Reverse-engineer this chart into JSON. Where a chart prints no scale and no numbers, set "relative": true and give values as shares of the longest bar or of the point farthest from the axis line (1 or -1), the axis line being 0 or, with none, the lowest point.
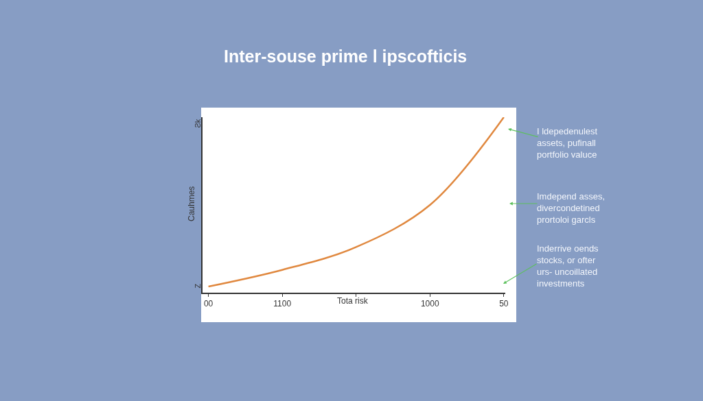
{
  "chart_data": {
    "type": "line",
    "title": "Inter-souse prime l ipscofticis",
    "xlabel": "Tota risk",
    "ylabel": "Cauhmes",
    "relative": true,
    "categories": [
      "00",
      "1100",
      null,
      "1000",
      "50"
    ],
    "series": [
      {
        "color": "#e0883f",
        "values": [
          0.035,
          0.13,
          0.26,
          0.5,
          1.0
        ]
      }
    ],
    "annotations": [
      "Ƨk",
      "Z",
      "I ldepedenulest\nassets, pufinall\nportfolio valuce",
      "Imdepend asses,\ndivercondetined\nprortoloi garcls",
      "Inderrive oends\nstocks, or ofter\nurs- uncoillated\ninvestments"
    ],
    "marker": "none",
    "line_style": "solid"
  }
}
